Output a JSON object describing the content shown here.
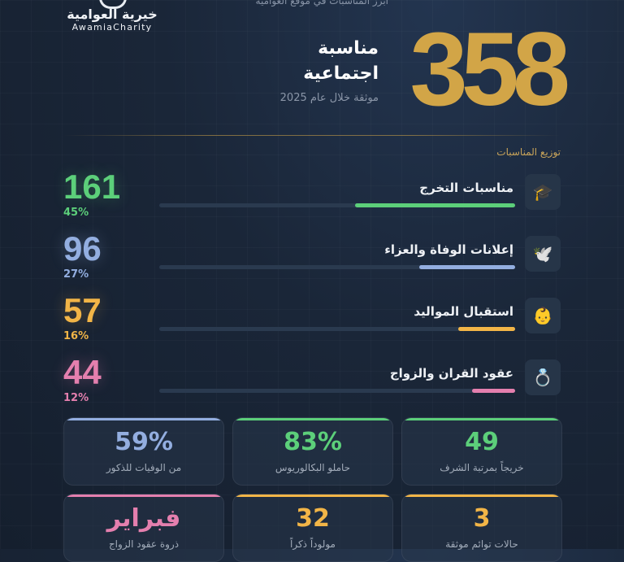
{
  "colors": {
    "gold": "#d2a547",
    "green": "#5ccf7a",
    "blue": "#93aee0",
    "amber": "#f2b547",
    "pink": "#e47fae"
  },
  "header": {
    "cut_text": "أبرز المناسبات في موقع العوامية",
    "logo_ar": "خيرية العوامية",
    "logo_en": "AwamiaCharity"
  },
  "hero": {
    "number": "358",
    "title_line1": "مناسبة",
    "title_line2": "اجتماعية",
    "subtitle": "موثقة خلال عام 2025"
  },
  "section_title": "توزيع المناسبات",
  "categories": [
    {
      "label": "مناسبات التخرج",
      "count": "161",
      "pct": "45%",
      "share": 0.45,
      "icon": "graduation-cap-icon",
      "glyph": "🎓",
      "color": "#5ccf7a"
    },
    {
      "label": "إعلانات الوفاة والعزاء",
      "count": "96",
      "pct": "27%",
      "share": 0.27,
      "icon": "dove-icon",
      "glyph": "🕊️",
      "color": "#93aee0"
    },
    {
      "label": "استقبال المواليد",
      "count": "57",
      "pct": "16%",
      "share": 0.16,
      "icon": "baby-icon",
      "glyph": "👶",
      "color": "#f2b547"
    },
    {
      "label": "عقود القران والزواج",
      "count": "44",
      "pct": "12%",
      "share": 0.12,
      "icon": "ring-icon",
      "glyph": "💍",
      "color": "#e47fae"
    }
  ],
  "stats_row1": [
    {
      "value": "49",
      "caption": "خريجاً بمرتبة الشرف",
      "color": "#5ccf7a"
    },
    {
      "value": "83%",
      "caption": "حاملو البكالوريوس",
      "color": "#5ccf7a"
    },
    {
      "value": "59%",
      "caption": "من الوفيات للذكور",
      "color": "#93aee0"
    }
  ],
  "stats_row2": [
    {
      "value": "3",
      "caption": "حالات توائم موثقة",
      "color": "#f2b547"
    },
    {
      "value": "32",
      "caption": "مولوداً ذكراً",
      "color": "#f2b547"
    },
    {
      "value": "فبراير",
      "caption": "ذروة عقود الزواج",
      "color": "#e47fae"
    }
  ]
}
